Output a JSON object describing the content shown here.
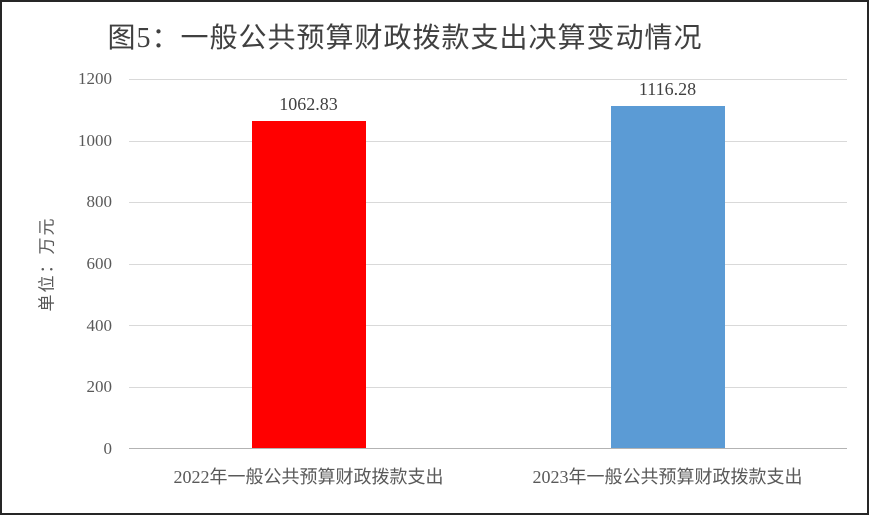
{
  "chart_data": {
    "type": "bar",
    "title": "图5：一般公共预算财政拨款支出决算变动情况",
    "xlabel": "",
    "ylabel": "单位：万元",
    "categories": [
      "2022年一般公共预算财政拨款支出",
      "2023年一般公共预算财政拨款支出"
    ],
    "values": [
      1062.83,
      1116.28
    ],
    "value_labels": [
      "1062.83",
      "1116.28"
    ],
    "bar_colors": [
      "#FF0000",
      "#5B9BD5"
    ],
    "ylim": [
      0,
      1200
    ],
    "ytick_interval": 200,
    "yticks": [
      "1200",
      "1000",
      "800",
      "600",
      "400",
      "200",
      "0"
    ],
    "grid": true,
    "legend": false
  },
  "colors": {
    "bar_2022": "#FF0000",
    "bar_2023": "#5B9BD5",
    "gridline": "#D9D9D9",
    "axis_baseline": "#B3B3B3",
    "tick_text": "#595959",
    "title_text": "#404040",
    "frame_border": "#262626",
    "background": "#FFFFFF"
  }
}
